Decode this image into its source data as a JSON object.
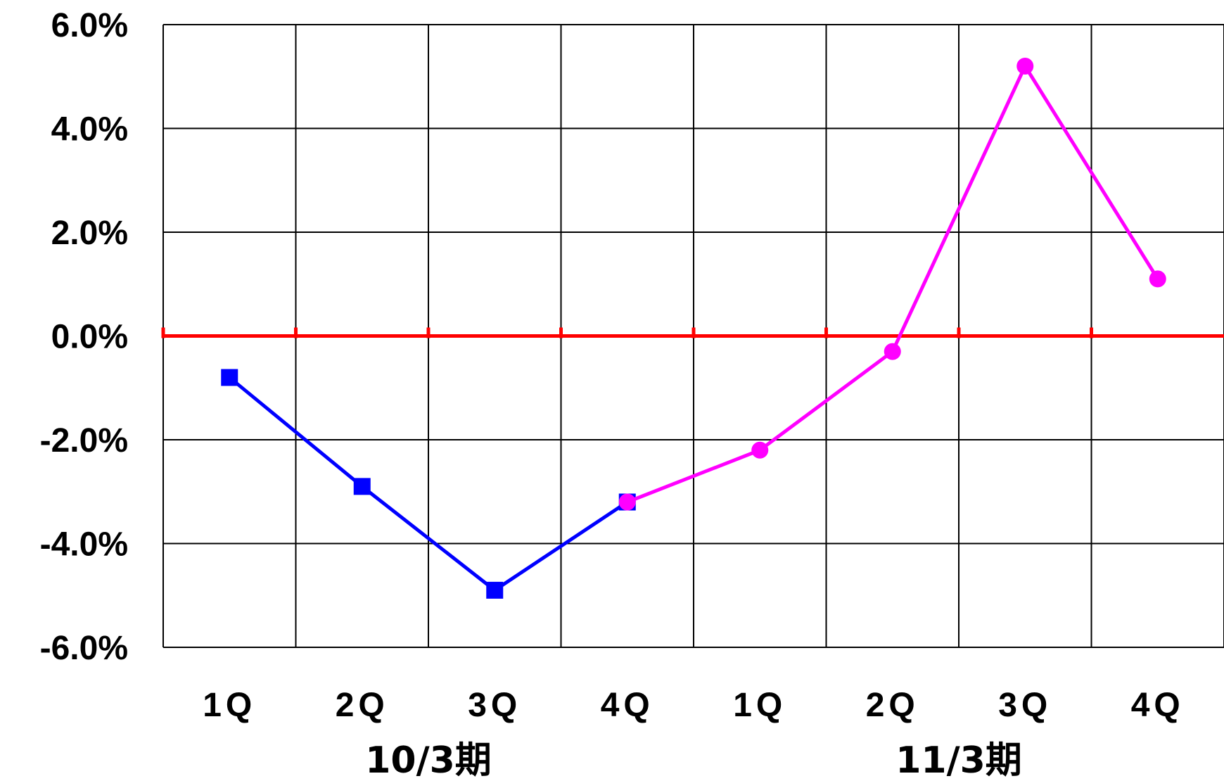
{
  "chart_data": {
    "type": "line",
    "title": "",
    "xlabel": "",
    "ylabel": "",
    "categories": [
      "1Q",
      "2Q",
      "3Q",
      "4Q",
      "1Q",
      "2Q",
      "3Q",
      "4Q"
    ],
    "groups": [
      {
        "label": "10/3期",
        "span": [
          0,
          3
        ]
      },
      {
        "label": "11/3期",
        "span": [
          4,
          7
        ]
      }
    ],
    "y_tick_labels": [
      "6.0%",
      "4.0%",
      "2.0%",
      "0.0%",
      "-2.0%",
      "-4.0%",
      "-6.0%"
    ],
    "y_ticks": [
      6,
      4,
      2,
      0,
      -2,
      -4,
      -6
    ],
    "ylim": [
      -6,
      6
    ],
    "grid": true,
    "zero_line": {
      "value": 0,
      "color": "#ff0000"
    },
    "series": [
      {
        "values": [
          -0.8,
          -2.9,
          -4.9,
          -3.2,
          null,
          null,
          null,
          null
        ],
        "color": "#0000ff",
        "marker": "square"
      },
      {
        "values": [
          null,
          null,
          null,
          -3.2,
          -2.2,
          -0.3,
          5.2,
          1.1
        ],
        "color": "#ff00ff",
        "marker": "circle"
      }
    ]
  }
}
